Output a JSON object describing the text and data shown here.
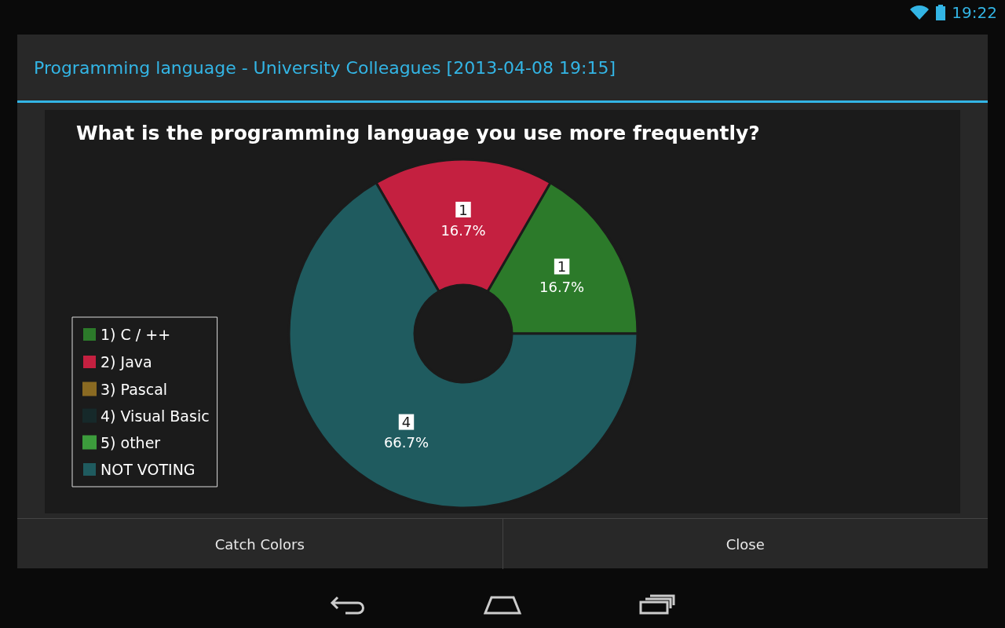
{
  "chart_data": {
    "type": "donut",
    "title": "What is the programming language you use more frequently?",
    "subtitle": "Programming language - University Colleagues [2013-04-08 19:15]",
    "categories": [
      "1) C / ++",
      "2) Java",
      "3) Pascal",
      "4) Visual Basic",
      "5) other",
      "NOT VOTING"
    ],
    "values": [
      1,
      1,
      0,
      0,
      0,
      4
    ],
    "colors": [
      "#2c7a2a",
      "#c42040",
      "#8a6a22",
      "#16292a",
      "#3c9c3c",
      "#1f5b5f"
    ],
    "value_labels": [
      "1\n16.7%",
      "1\n16.7%",
      null,
      null,
      null,
      "4\n66.7%"
    ],
    "legend": "bottom left",
    "annotations": [
      "Catch Colors",
      "Close",
      "19:22"
    ]
  }
}
